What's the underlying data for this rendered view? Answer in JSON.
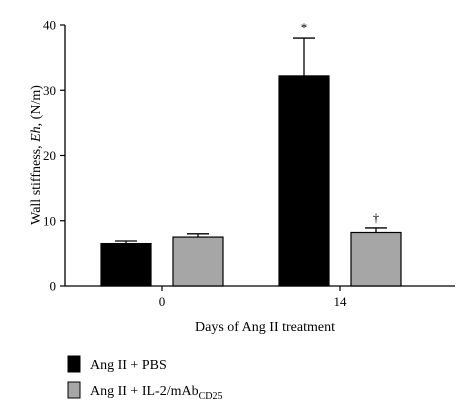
{
  "chart_data": {
    "type": "bar",
    "categories": [
      "0",
      "14"
    ],
    "series": [
      {
        "name": "Ang II + PBS",
        "color": "#000000",
        "values": [
          6.5,
          32.2
        ],
        "errors": [
          0.4,
          5.8
        ]
      },
      {
        "name": "Ang II + IL-2/mAb",
        "name_subscript": "CD25",
        "color": "#a6a6a6",
        "values": [
          7.5,
          8.2
        ],
        "errors": [
          0.5,
          0.7
        ]
      }
    ],
    "annotations": [
      {
        "category": "14",
        "series": 0,
        "text": "*"
      },
      {
        "category": "14",
        "series": 1,
        "text": "†"
      }
    ],
    "xlabel": "Days of Ang II treatment",
    "ylabel": {
      "prefix": "Wall stiffness, ",
      "italic": "Eh",
      "suffix": ", (N/m)"
    },
    "yticks": [
      "0",
      "10",
      "20",
      "30",
      "40"
    ],
    "ylim": [
      0,
      40
    ],
    "grid": false,
    "legend_position": "bottom-left"
  }
}
